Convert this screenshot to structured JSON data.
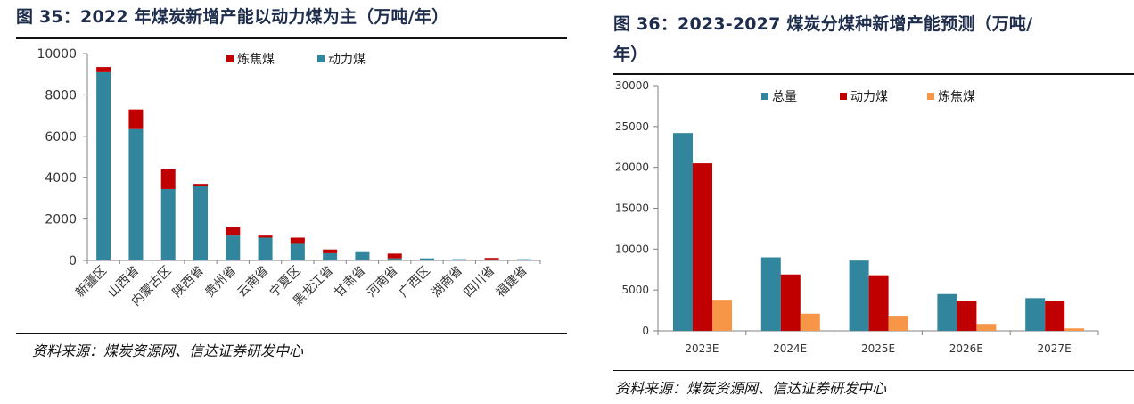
{
  "colors": {
    "left_coking": "#c00000",
    "left_thermal": "#31859c",
    "right_total": "#31859c",
    "right_thermal": "#c00000",
    "right_coking": "#f79646",
    "title_text": "#1f2d4d",
    "axis": "#808080"
  },
  "figures": [
    {
      "title": "图 35：2022 年煤炭新增产能以动力煤为主（万吨/年）",
      "source": "资料来源：煤炭资源网、信达证券研发中心"
    },
    {
      "title_line1": "图 36：2023-2027 煤炭分煤种新增产能预测（万吨/",
      "title_line2": "年）",
      "source": "资料来源：煤炭资源网、信达证券研发中心"
    }
  ],
  "chart_data": [
    {
      "type": "bar",
      "stacked": true,
      "categories": [
        "新疆区",
        "山西省",
        "内蒙古区",
        "陕西省",
        "贵州省",
        "云南省",
        "宁夏区",
        "黑龙江省",
        "甘肃省",
        "河南省",
        "广西区",
        "湖南省",
        "四川省",
        "福建省"
      ],
      "series": [
        {
          "name": "动力煤",
          "values": [
            9100,
            6350,
            3450,
            3600,
            1200,
            1100,
            800,
            350,
            400,
            100,
            100,
            60,
            50,
            60
          ]
        },
        {
          "name": "炼焦煤",
          "values": [
            250,
            950,
            950,
            100,
            400,
            100,
            300,
            180,
            0,
            230,
            0,
            0,
            70,
            0
          ]
        }
      ],
      "ylim": [
        0,
        10000
      ],
      "yticks": [
        0,
        2000,
        4000,
        6000,
        8000,
        10000
      ],
      "legend_order": [
        "炼焦煤",
        "动力煤"
      ],
      "legend_position": "top-right",
      "grid": false
    },
    {
      "type": "bar",
      "categories": [
        "2023E",
        "2024E",
        "2025E",
        "2026E",
        "2027E"
      ],
      "series": [
        {
          "name": "总量",
          "values": [
            24200,
            9000,
            8600,
            4500,
            4000
          ]
        },
        {
          "name": "动力煤",
          "values": [
            20500,
            6900,
            6800,
            3700,
            3700
          ]
        },
        {
          "name": "炼焦煤",
          "values": [
            3800,
            2100,
            1850,
            850,
            300
          ]
        }
      ],
      "ylim": [
        0,
        30000
      ],
      "yticks": [
        0,
        5000,
        10000,
        15000,
        20000,
        25000,
        30000
      ],
      "legend_position": "top-center",
      "grid": false
    }
  ]
}
